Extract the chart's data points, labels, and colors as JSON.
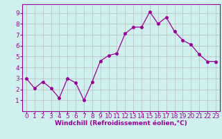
{
  "x": [
    0,
    1,
    2,
    3,
    4,
    5,
    6,
    7,
    8,
    9,
    10,
    11,
    12,
    13,
    14,
    15,
    16,
    17,
    18,
    19,
    20,
    21,
    22,
    23
  ],
  "y": [
    3.0,
    2.1,
    2.7,
    2.1,
    1.2,
    3.0,
    2.6,
    1.0,
    2.7,
    4.6,
    5.1,
    5.3,
    7.1,
    7.7,
    7.7,
    9.1,
    8.0,
    8.6,
    7.3,
    6.5,
    6.1,
    5.2,
    4.55,
    4.55
  ],
  "line_color": "#990099",
  "marker": "o",
  "marker_color": "#990099",
  "bg_color": "#cff0ee",
  "grid_color": "#b0b0b0",
  "xlabel": "Windchill (Refroidissement éolien,°C)",
  "xlim": [
    -0.5,
    23.5
  ],
  "ylim": [
    0,
    9.8
  ],
  "yticks": [
    1,
    2,
    3,
    4,
    5,
    6,
    7,
    8,
    9
  ],
  "xticks": [
    0,
    1,
    2,
    3,
    4,
    5,
    6,
    7,
    8,
    9,
    10,
    11,
    12,
    13,
    14,
    15,
    16,
    17,
    18,
    19,
    20,
    21,
    22,
    23
  ],
  "xlabel_color": "#990099",
  "xlabel_fontsize": 6.5,
  "tick_fontsize": 6.5,
  "tick_color": "#990099",
  "spine_color": "#990099",
  "marker_size": 2.5,
  "linewidth": 0.9
}
